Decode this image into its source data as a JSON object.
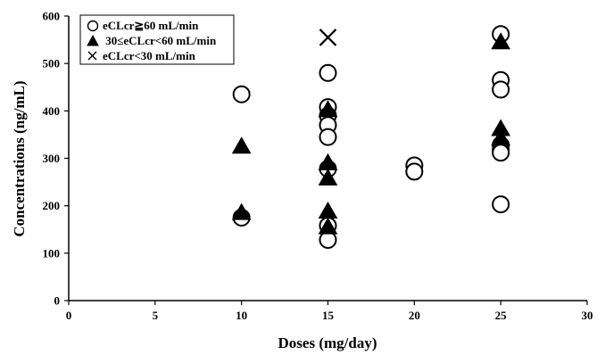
{
  "chart_data": {
    "type": "scatter",
    "xlabel": "Doses (mg/day)",
    "ylabel": "Concentrations (ng/mL)",
    "xlim": [
      0,
      30
    ],
    "ylim": [
      0,
      600
    ],
    "xticks": [
      0,
      5,
      10,
      15,
      20,
      25,
      30
    ],
    "yticks": [
      0,
      100,
      200,
      300,
      400,
      500,
      600
    ],
    "grid": false,
    "legend_position": "top-left",
    "series": [
      {
        "name": "eCLcr≧60 mL/min",
        "marker": "open-circle",
        "points": [
          [
            10,
            435
          ],
          [
            10,
            175
          ],
          [
            15,
            480
          ],
          [
            15,
            408
          ],
          [
            15,
            390
          ],
          [
            15,
            370
          ],
          [
            15,
            345
          ],
          [
            15,
            278
          ],
          [
            15,
            158
          ],
          [
            15,
            128
          ],
          [
            20,
            285
          ],
          [
            20,
            272
          ],
          [
            25,
            562
          ],
          [
            25,
            465
          ],
          [
            25,
            445
          ],
          [
            25,
            328
          ],
          [
            25,
            318
          ],
          [
            25,
            312
          ],
          [
            25,
            203
          ]
        ]
      },
      {
        "name": " 30≤eCLcr<60 mL/min",
        "marker": "filled-triangle",
        "points": [
          [
            10,
            325
          ],
          [
            10,
            185
          ],
          [
            15,
            402
          ],
          [
            15,
            290
          ],
          [
            15,
            258
          ],
          [
            15,
            188
          ],
          [
            15,
            155
          ],
          [
            25,
            545
          ],
          [
            25,
            362
          ],
          [
            25,
            342
          ]
        ]
      },
      {
        "name": "eCLcr<30 mL/min",
        "marker": "x",
        "points": [
          [
            15,
            555
          ]
        ]
      }
    ]
  }
}
